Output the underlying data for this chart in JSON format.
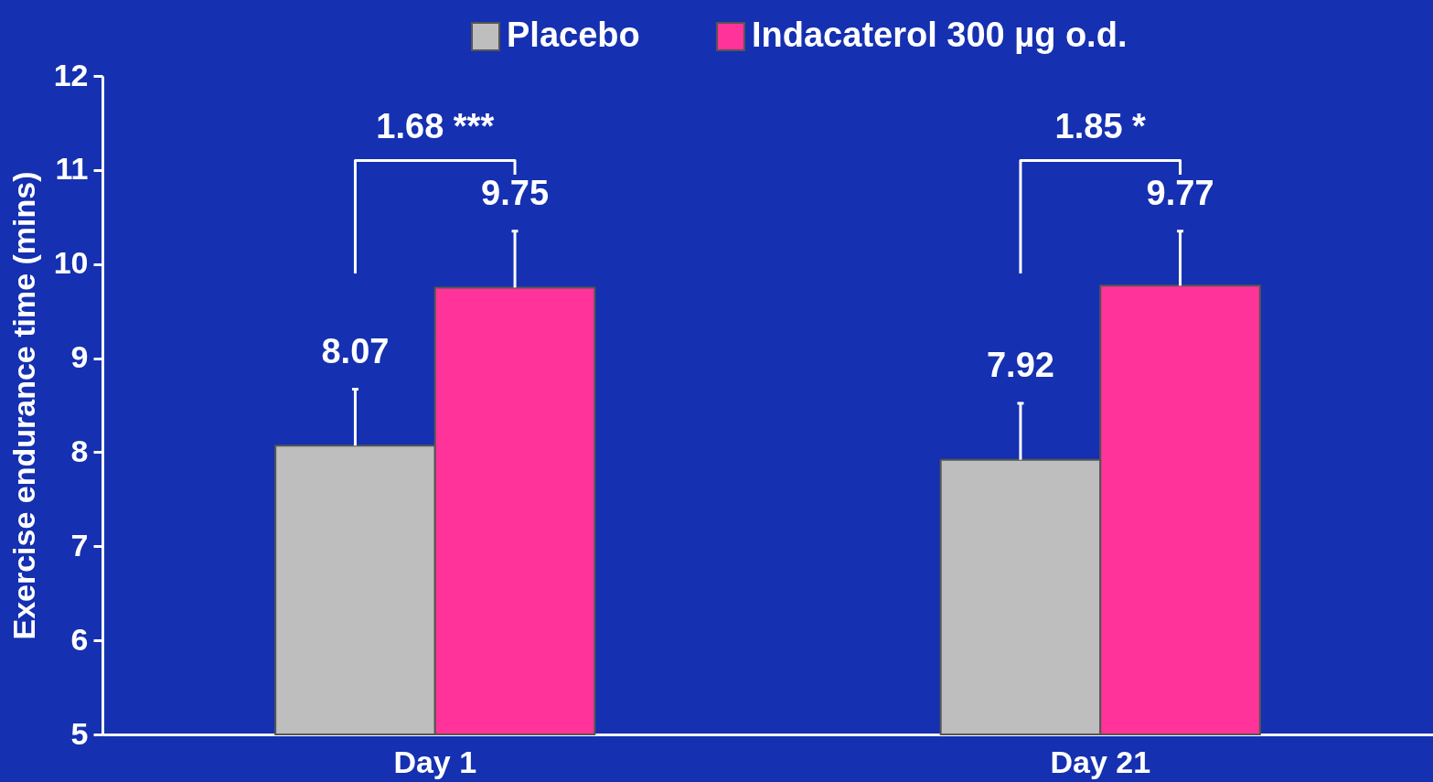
{
  "chart_data": {
    "type": "bar",
    "ylabel": "Exercise endurance time (mins)",
    "categories": [
      "Day 1",
      "Day 21"
    ],
    "series": [
      {
        "name": "Placebo",
        "color": "#bebebe",
        "values": [
          8.07,
          7.92
        ],
        "errors": [
          [
            8.07,
            8.67
          ],
          [
            7.92,
            8.52
          ]
        ]
      },
      {
        "name": "Indacaterol 300 µg o.d.",
        "color": "#ff3399",
        "values": [
          9.75,
          9.77
        ],
        "errors": [
          [
            9.75,
            10.35
          ],
          [
            9.77,
            10.35
          ]
        ]
      }
    ],
    "ylim": [
      5,
      12
    ],
    "yticks": [
      5,
      6,
      7,
      8,
      9,
      10,
      11,
      12
    ],
    "grid": false,
    "legend": "top",
    "data_labels": true,
    "annotations": [
      "1.68 ***",
      "1.85 *"
    ]
  }
}
